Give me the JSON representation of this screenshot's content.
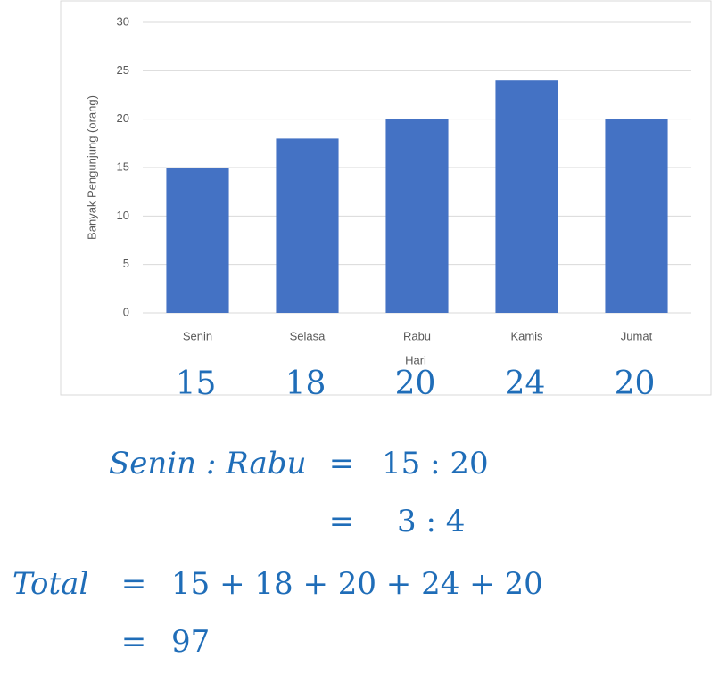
{
  "chart_data": {
    "type": "bar",
    "x_label": "Hari",
    "y_label": "Banyak Pengunjung (orang)",
    "categories": [
      "Senin",
      "Selasa",
      "Rabu",
      "Kamis",
      "Jumat"
    ],
    "values": [
      15,
      18,
      20,
      24,
      20
    ],
    "color": "#4472c4",
    "ylim": [
      0,
      30
    ],
    "yticks": [
      0,
      5,
      10,
      15,
      20,
      25,
      30
    ],
    "grid": true
  },
  "equations": [
    [
      "Senin : Rabu",
      "=",
      "15 : 20"
    ],
    [
      "=",
      "3 : 4"
    ],
    [
      "Total",
      "=",
      "15 + 18 + 20 + 24 + 20"
    ],
    [
      "=",
      "97"
    ]
  ]
}
